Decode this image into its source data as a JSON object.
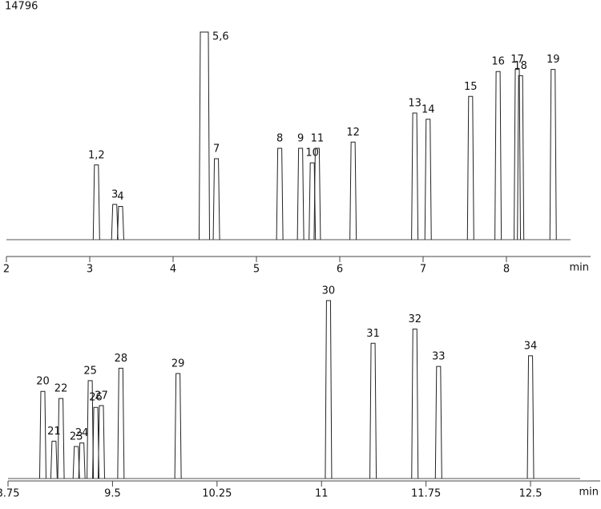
{
  "chart_data": [
    {
      "type": "line",
      "annotation": "14796",
      "xlabel": "min",
      "xlim": [
        2,
        9
      ],
      "xticks": [
        2,
        3,
        4,
        5,
        6,
        7,
        8
      ],
      "ylim": [
        0,
        100
      ],
      "peaks": {
        "labels": [
          "1,2",
          "3",
          "4",
          "5,6",
          "7",
          "8",
          "9",
          "10",
          "11",
          "12",
          "13",
          "14",
          "15",
          "16",
          "17",
          "18",
          "19"
        ],
        "x": [
          3.08,
          3.3,
          3.37,
          4.375,
          4.52,
          5.28,
          5.53,
          5.67,
          5.73,
          6.16,
          6.9,
          7.06,
          7.57,
          7.9,
          8.13,
          8.17,
          8.56
        ],
        "values": [
          36,
          17,
          16,
          100,
          39,
          44,
          44,
          37,
          44,
          47,
          61,
          58,
          69,
          81,
          82,
          79,
          82
        ]
      },
      "color": "#222222"
    },
    {
      "type": "line",
      "xlabel": "min",
      "xlim": [
        8.75,
        13
      ],
      "xticks": [
        8.75,
        9.5,
        10.25,
        11,
        11.75,
        12.5
      ],
      "ylim": [
        0,
        100
      ],
      "peaks": {
        "labels": [
          "20",
          "21",
          "22",
          "23",
          "24",
          "25",
          "26",
          "27",
          "28",
          "29",
          "30",
          "31",
          "32",
          "33",
          "34"
        ],
        "x": [
          9.0,
          9.08,
          9.13,
          9.24,
          9.28,
          9.34,
          9.38,
          9.42,
          9.56,
          9.97,
          11.05,
          11.37,
          11.67,
          11.84,
          12.5
        ],
        "values": [
          49,
          21,
          45,
          18,
          20,
          55,
          40,
          41,
          62,
          59,
          100,
          76,
          84,
          63,
          69
        ]
      },
      "color": "#222222"
    }
  ]
}
